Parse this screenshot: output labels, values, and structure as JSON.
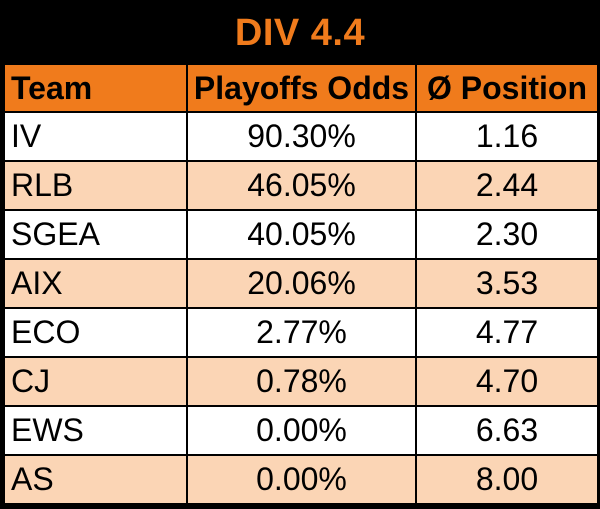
{
  "title": "DIV 4.4",
  "columns": {
    "team": "Team",
    "odds": "Playoffs Odds",
    "position": "Ø Position"
  },
  "rows": [
    {
      "team": "IV",
      "odds": "90.30%",
      "position": "1.16"
    },
    {
      "team": "RLB",
      "odds": "46.05%",
      "position": "2.44"
    },
    {
      "team": "SGEA",
      "odds": "40.05%",
      "position": "2.30"
    },
    {
      "team": "AIX",
      "odds": "20.06%",
      "position": "3.53"
    },
    {
      "team": "ECO",
      "odds": "2.77%",
      "position": "4.77"
    },
    {
      "team": "CJ",
      "odds": "0.78%",
      "position": "4.70"
    },
    {
      "team": "EWS",
      "odds": "0.00%",
      "position": "6.63"
    },
    {
      "team": "AS",
      "odds": "0.00%",
      "position": "8.00"
    }
  ],
  "colors": {
    "header_orange": "#f07b1c",
    "row_alt": "#fbd5b5",
    "background": "#000000"
  }
}
